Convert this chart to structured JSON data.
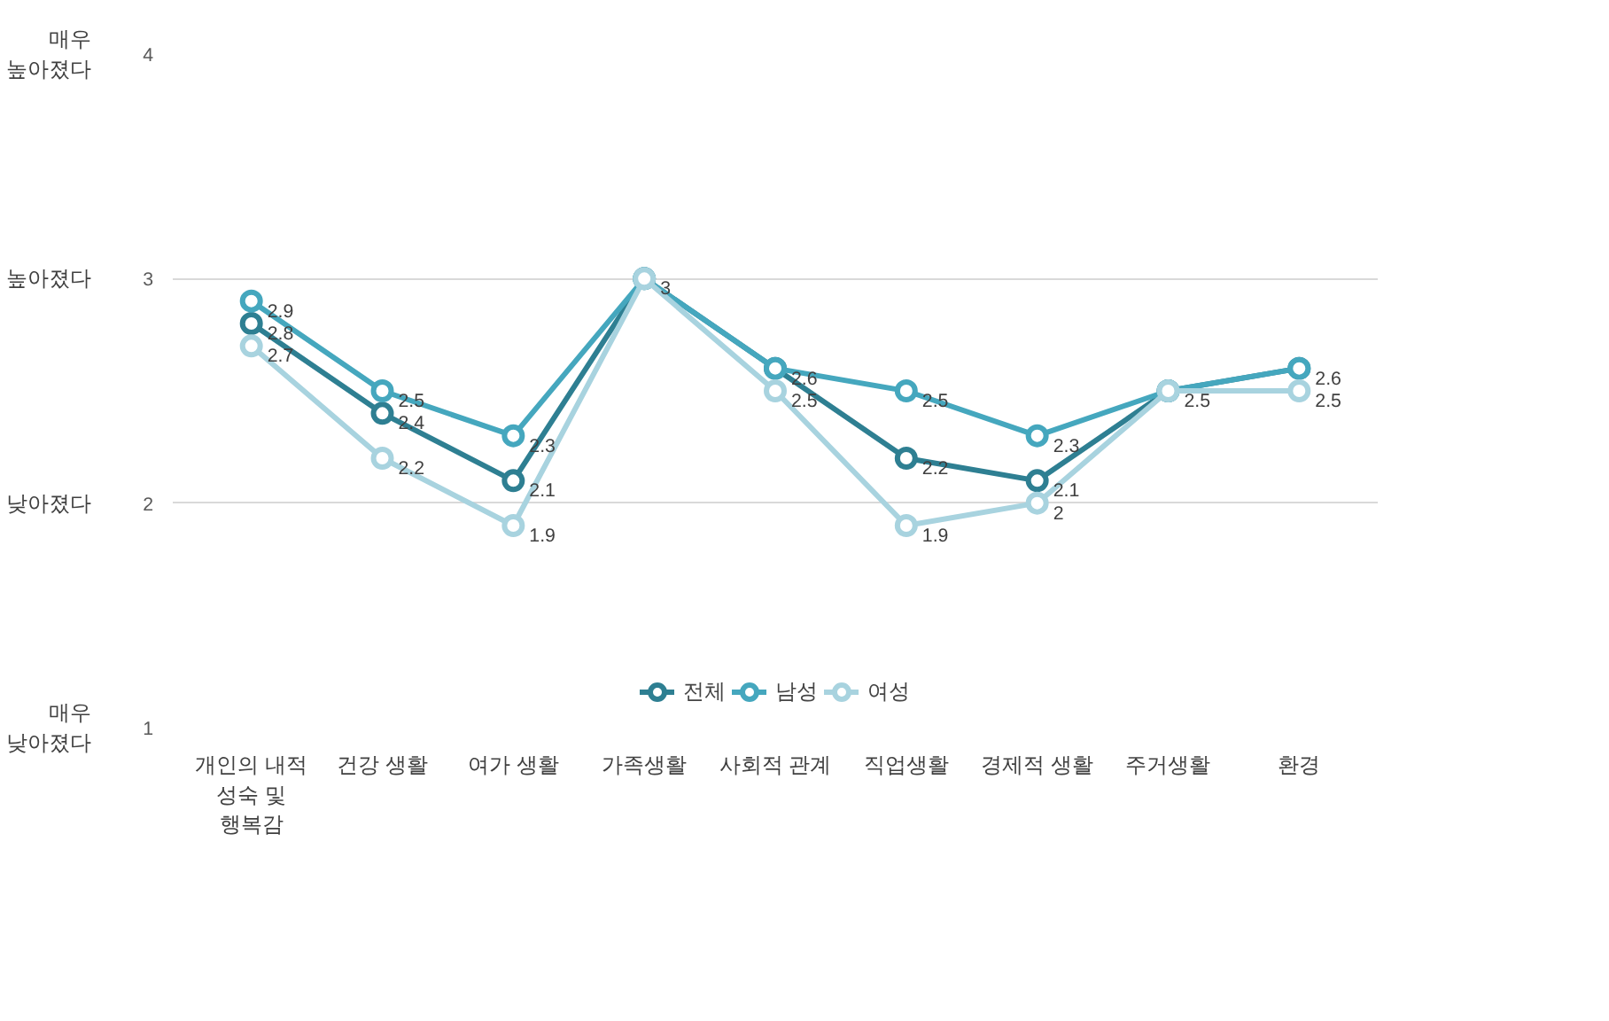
{
  "chart_data": {
    "type": "line",
    "categories": [
      "개인의 내적\n성숙 및\n행복감",
      "건강 생활",
      "여가 생활",
      "가족생활",
      "사회적 관계",
      "직업생활",
      "경제적 생활",
      "주거생활",
      "환경"
    ],
    "series": [
      {
        "name": "전체",
        "color": "#2e7f92",
        "values": [
          2.8,
          2.4,
          2.1,
          3,
          2.6,
          2.2,
          2.1,
          2.5,
          2.6
        ],
        "value_labels": [
          "2.8",
          "2.4",
          "2.1",
          "3",
          "2.6",
          "2.2",
          "2.1",
          "2.5",
          "2.6"
        ]
      },
      {
        "name": "남성",
        "color": "#45a7be",
        "values": [
          2.9,
          2.5,
          2.3,
          3,
          2.6,
          2.5,
          2.3,
          2.5,
          2.6
        ],
        "value_labels": [
          "2.9",
          "2.5",
          "2.3",
          null,
          null,
          "2.5",
          "2.3",
          null,
          null
        ]
      },
      {
        "name": "여성",
        "color": "#a8d3df",
        "values": [
          2.7,
          2.2,
          1.9,
          3,
          2.5,
          1.9,
          2,
          2.5,
          2.5
        ],
        "value_labels": [
          "2.7",
          "2.2",
          "1.9",
          null,
          "2.5",
          "1.9",
          "2",
          null,
          "2.5"
        ]
      }
    ],
    "ylim": [
      1,
      4
    ],
    "yticks": [
      1,
      2,
      3,
      4
    ],
    "annotations": [
      "매우\n높아졌다",
      "높아졌다",
      "낮아졌다",
      "매우\n낮아졌다"
    ],
    "grid": "y",
    "legend": "bottom",
    "marker": "circle",
    "line_style": "solid"
  }
}
